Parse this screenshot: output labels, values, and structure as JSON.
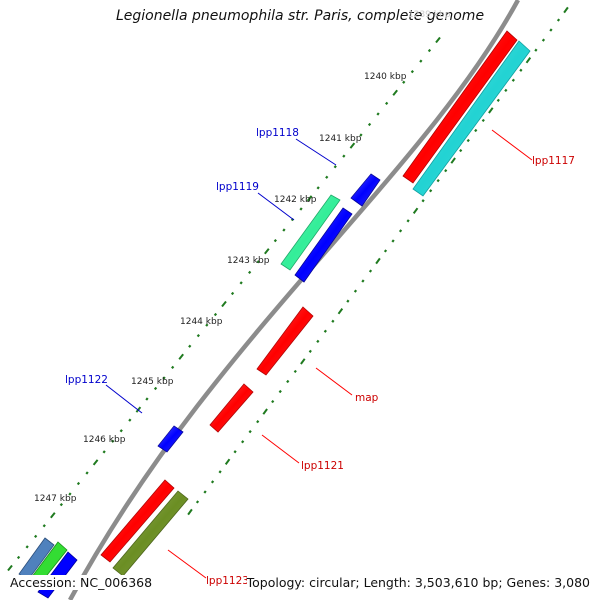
{
  "title": "Legionella pneumophila str. Paris, complete genome",
  "footer": {
    "accession": "Accession: NC_006368",
    "summary": "Topology: circular; Length: 3,503,610 bp; Genes: 3,080"
  },
  "kbp_ticks": [
    {
      "label": "1239 kbp",
      "faded": true
    },
    {
      "label": "1240 kbp",
      "faded": false
    },
    {
      "label": "1241 kbp",
      "faded": false
    },
    {
      "label": "1242 kbp",
      "faded": false
    },
    {
      "label": "1243 kbp",
      "faded": false
    },
    {
      "label": "1244 kbp",
      "faded": false
    },
    {
      "label": "1245 kbp",
      "faded": false
    },
    {
      "label": "1246 kbp",
      "faded": false
    },
    {
      "label": "1247 kbp",
      "faded": false
    }
  ],
  "gene_labels": {
    "lpp1117": "lpp1117",
    "lpp1118": "lpp1118",
    "lpp1119": "lpp1119",
    "map": "map",
    "lpp1121": "lpp1121",
    "lpp1122": "lpp1122",
    "lpp1123": "lpp1123"
  },
  "colors": {
    "backbone": "#8c8c8c",
    "tick_green": "#1f7a1f",
    "forward_label": "#0000cc",
    "reverse_label": "#cc0000",
    "red_feature": "#ff0000",
    "blue_feature": "#0000ff",
    "cyan_feature": "#22d3d3",
    "green_feature": "#33ee99",
    "olive_feature": "#6b8e23",
    "steel_feature": "#4f81bd"
  }
}
